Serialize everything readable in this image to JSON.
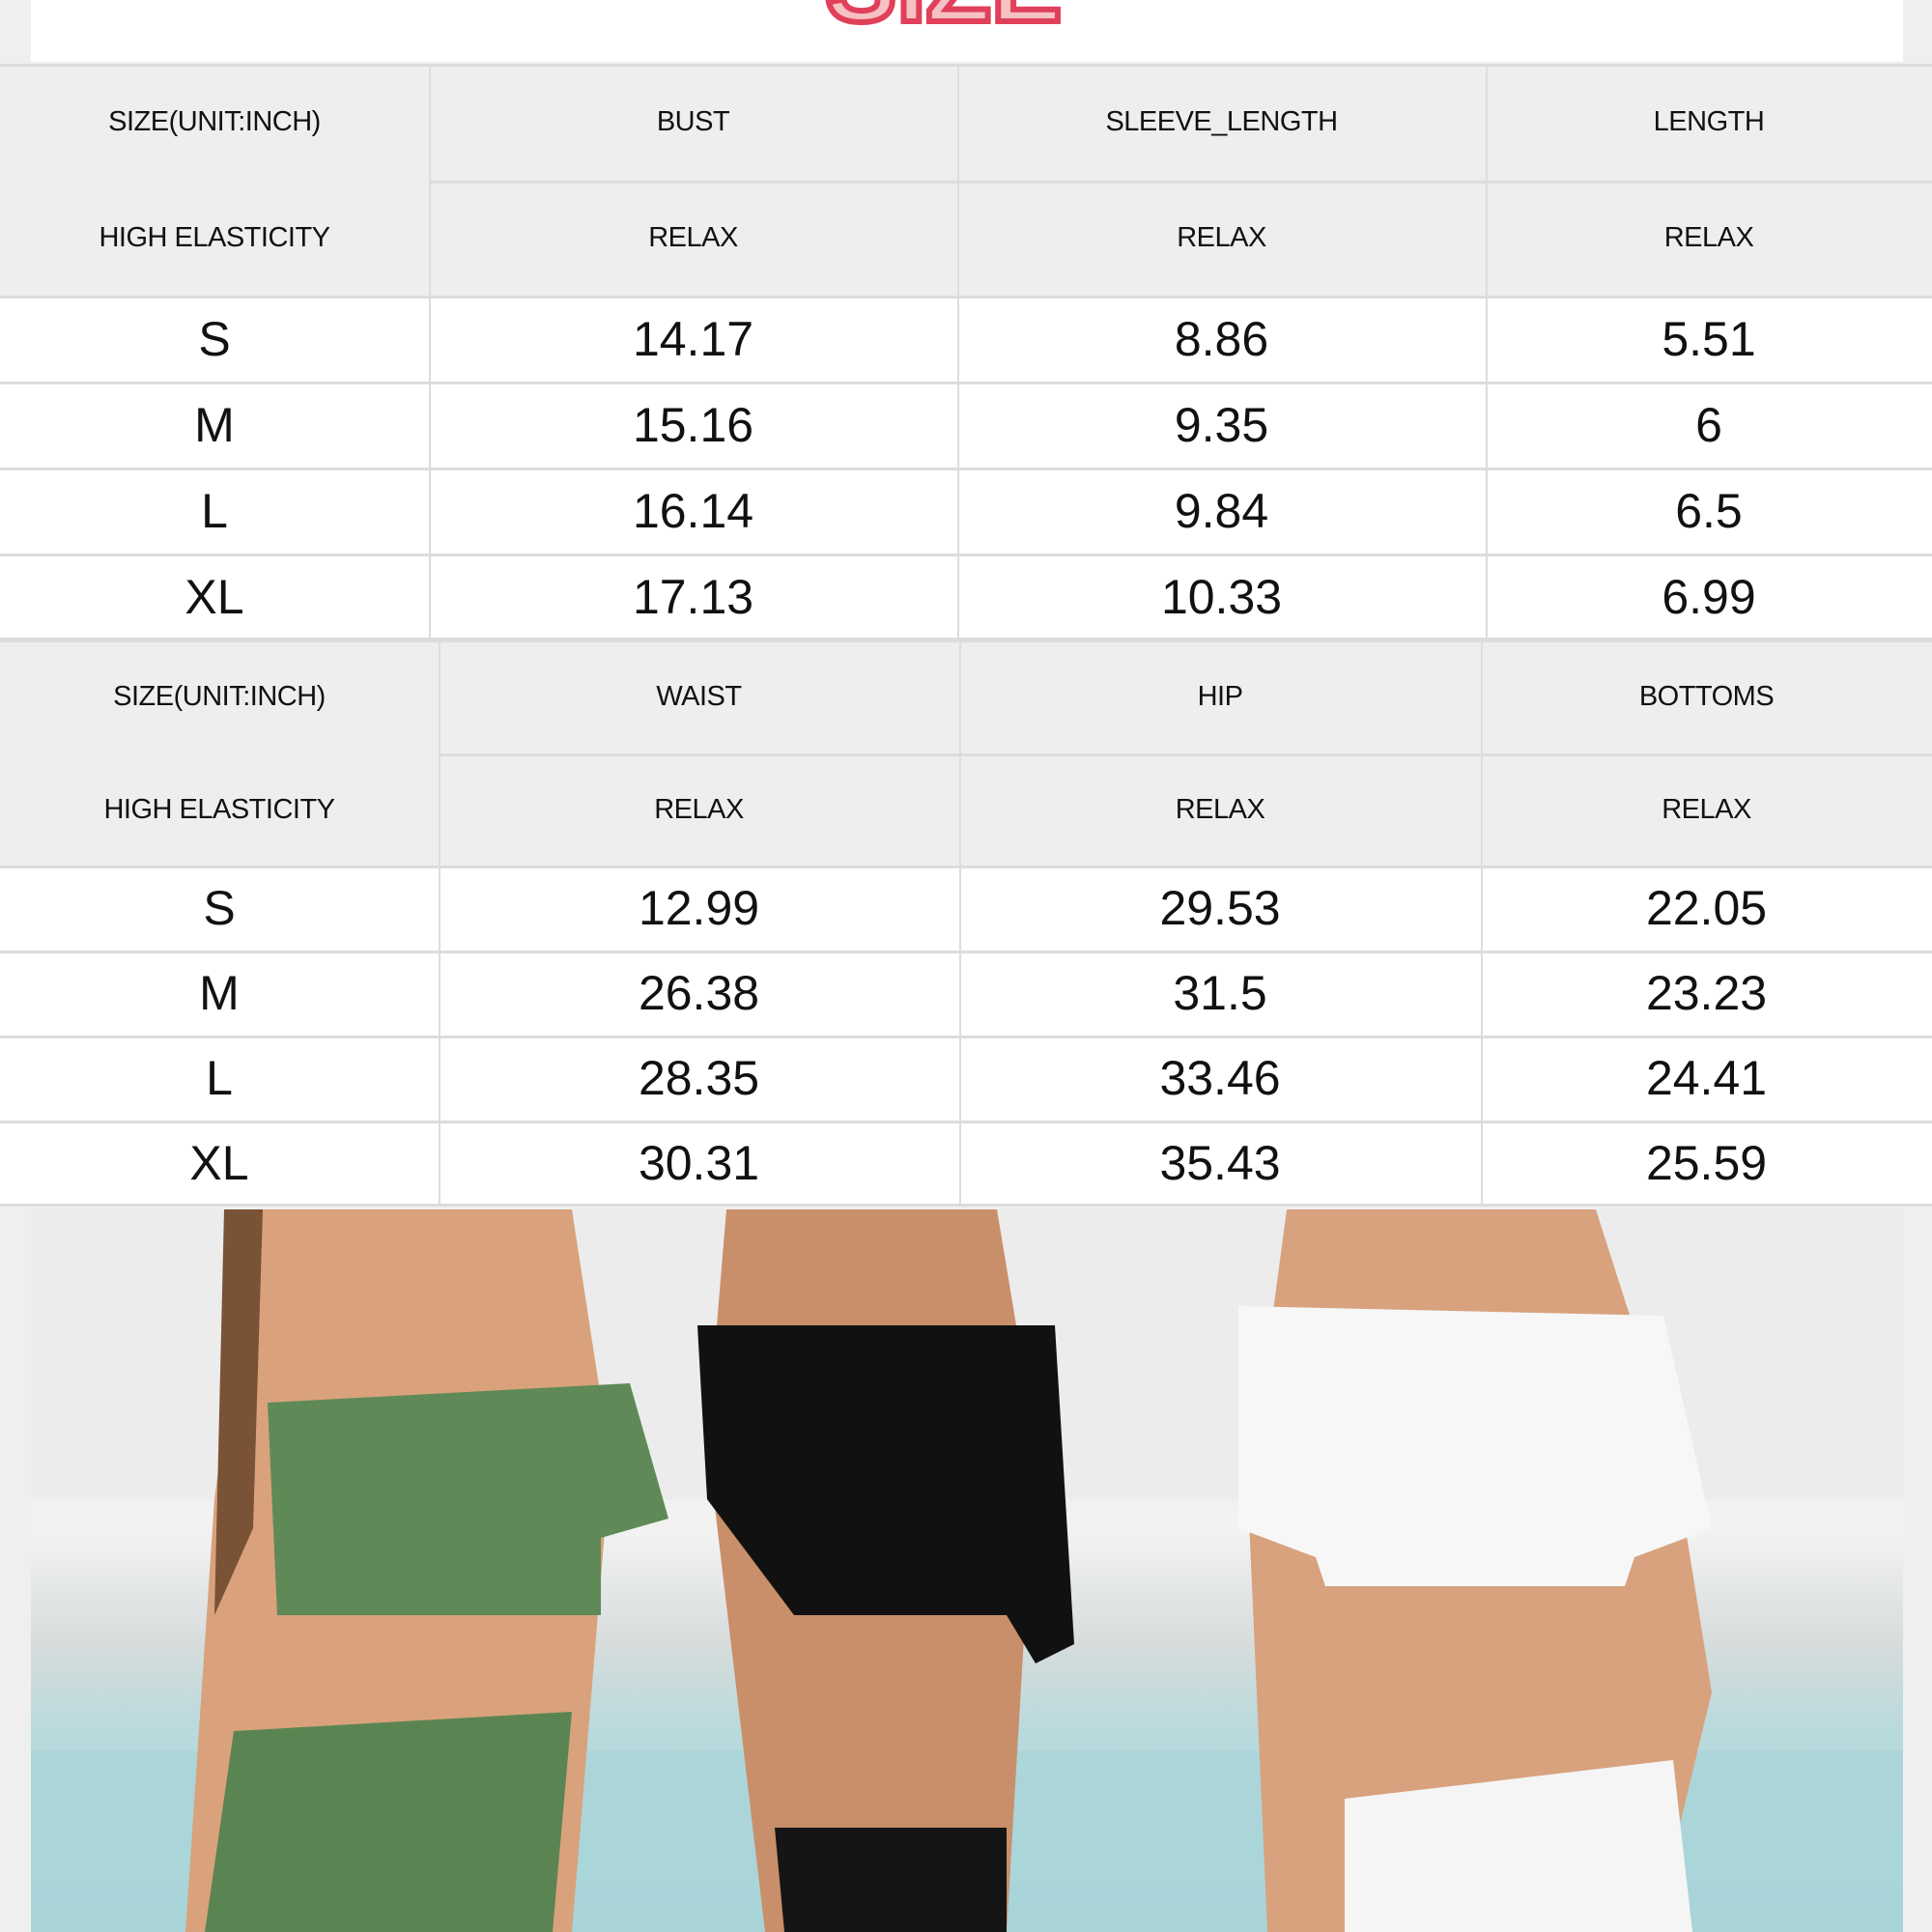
{
  "logo": {
    "text": "SIZE",
    "color": "#e0405a"
  },
  "table1": {
    "header1": [
      "SIZE(UNIT:INCH)",
      "BUST",
      "SLEEVE_LENGTH",
      "LENGTH"
    ],
    "header2": [
      "HIGH ELASTICITY",
      "RELAX",
      "RELAX",
      "RELAX"
    ],
    "rows": [
      [
        "S",
        "14.17",
        "8.86",
        "5.51"
      ],
      [
        "M",
        "15.16",
        "9.35",
        "6"
      ],
      [
        "L",
        "16.14",
        "9.84",
        "6.5"
      ],
      [
        "XL",
        "17.13",
        "10.33",
        "6.99"
      ]
    ]
  },
  "table2": {
    "header1": [
      "SIZE(UNIT:INCH)",
      "WAIST",
      "HIP",
      "BOTTOMS"
    ],
    "header2": [
      "HIGH ELASTICITY",
      "RELAX",
      "RELAX",
      "RELAX"
    ],
    "rows": [
      [
        "S",
        "12.99",
        "29.53",
        "22.05"
      ],
      [
        "M",
        "26.38",
        "31.5",
        "23.23"
      ],
      [
        "L",
        "28.35",
        "33.46",
        "24.41"
      ],
      [
        "XL",
        "30.31",
        "35.43",
        "25.59"
      ]
    ]
  },
  "photo": {
    "swimsuit_colors": [
      "#5f8a57",
      "#111111",
      "#f7f7f7"
    ]
  }
}
